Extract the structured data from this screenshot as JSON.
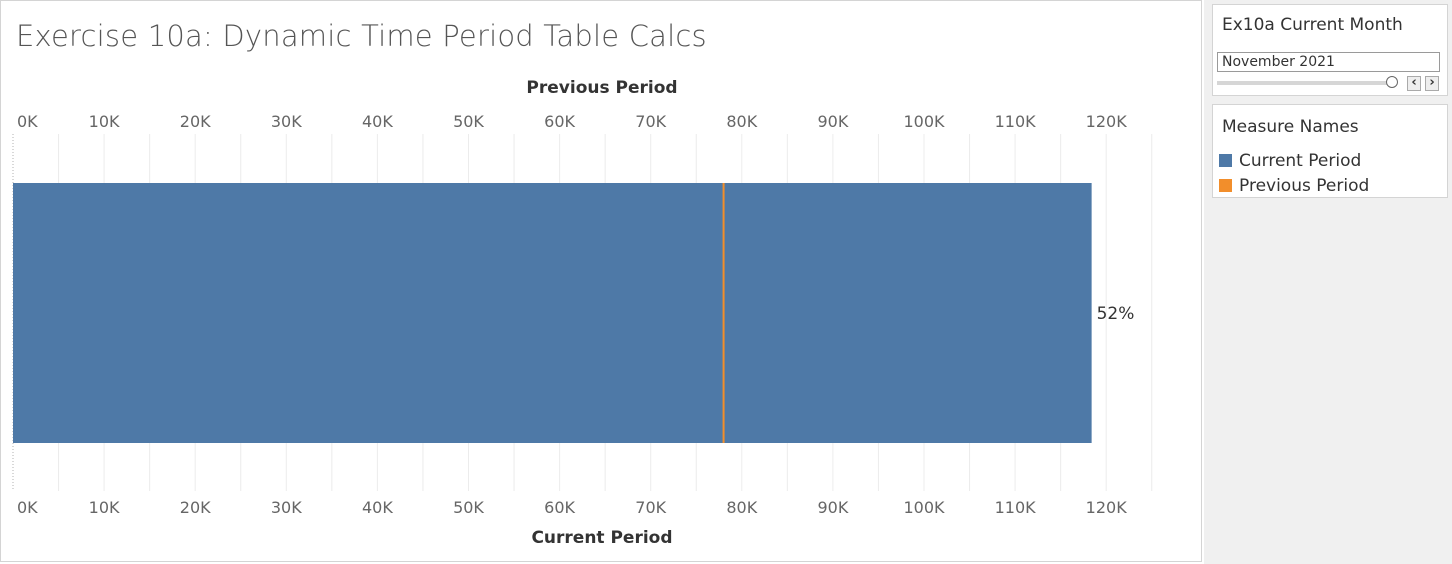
{
  "dashboard": {
    "title": "Exercise 10a: Dynamic Time Period Table Calcs"
  },
  "chart_data": {
    "type": "bar",
    "top_axis_title": "Previous Period",
    "bottom_axis_title": "Current Period",
    "tick_labels": [
      "0K",
      "10K",
      "20K",
      "30K",
      "40K",
      "50K",
      "60K",
      "70K",
      "80K",
      "90K",
      "100K",
      "110K",
      "120K"
    ],
    "xlim": [
      0,
      120000
    ],
    "series": [
      {
        "name": "Current Period",
        "values": [
          118400
        ],
        "color": "#4e79a7",
        "mark": "bar"
      },
      {
        "name": "Previous Period",
        "values": [
          78000
        ],
        "color": "#f28e2b",
        "mark": "reference-line"
      }
    ],
    "data_label": "52%",
    "grid": true
  },
  "filter": {
    "title": "Ex10a Current Month",
    "value": "November 2021",
    "prev_icon": "chevron-left-icon",
    "next_icon": "chevron-right-icon"
  },
  "legend": {
    "title": "Measure Names",
    "items": [
      {
        "label": "Current Period",
        "color": "#4e79a7"
      },
      {
        "label": "Previous Period",
        "color": "#f28e2b"
      }
    ]
  }
}
